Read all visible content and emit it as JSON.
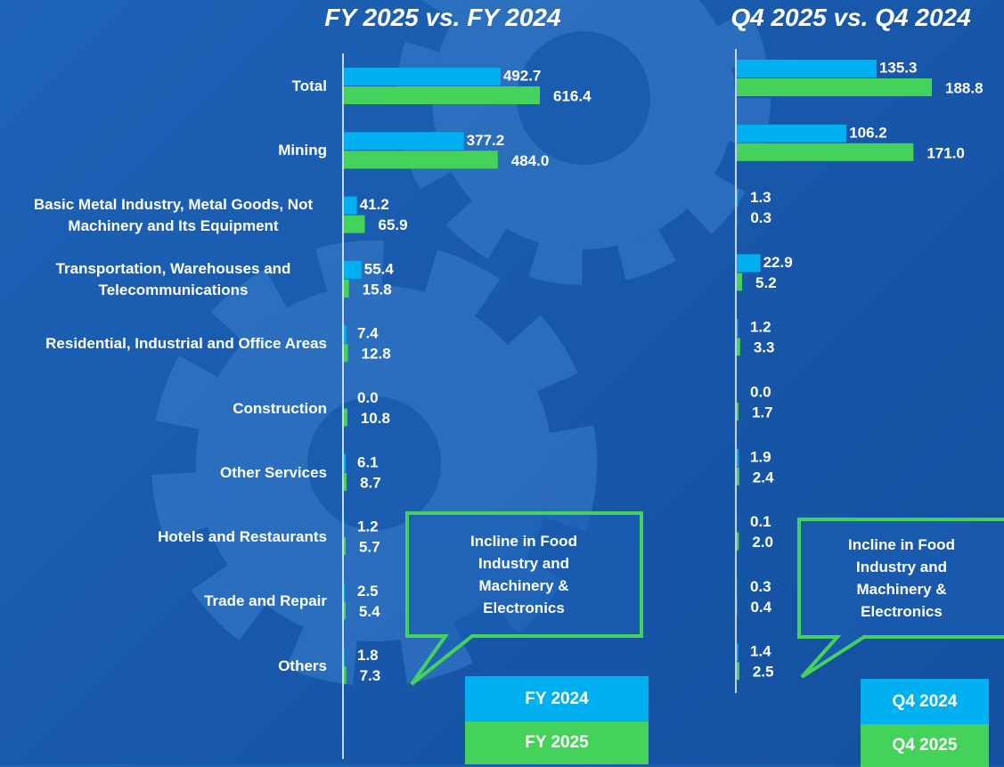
{
  "chart_data": [
    {
      "type": "barh",
      "title": "FY 2025 vs. FY 2024",
      "categories": [
        "Total",
        "Mining",
        "Basic Metal Industry, Metal Goods, Not Machinery and Its Equipment",
        "Transportation, Warehouses and Telecommunications",
        "Residential, Industrial and Office Areas",
        "Construction",
        "Other Services",
        "Hotels and Restaurants",
        "Trade and Repair",
        "Others"
      ],
      "series": [
        {
          "name": "FY 2024",
          "color": "#00b0f0",
          "values": [
            492.7,
            377.2,
            41.2,
            55.4,
            7.4,
            0.0,
            6.1,
            1.2,
            2.5,
            1.8
          ],
          "value_labels": [
            "492.7",
            "377.2",
            "41.2",
            "55.4",
            "7.4",
            "0.0",
            "6.1",
            "1.2",
            "2.5",
            "1.8"
          ]
        },
        {
          "name": "FY 2025",
          "color": "#45d25a",
          "values": [
            616.4,
            484.0,
            65.9,
            15.8,
            12.8,
            10.8,
            8.7,
            5.7,
            5.4,
            7.3
          ],
          "value_labels": [
            "616.4",
            "484.0",
            "65.9",
            "15.8",
            "12.8",
            "10.8",
            "8.7",
            "5.7",
            "5.4",
            "7.3"
          ]
        }
      ],
      "annotation": "Incline in Food Industry and Machinery & Electronics"
    },
    {
      "type": "barh",
      "title": "Q4 2025 vs. Q4 2024",
      "series": [
        {
          "name": "Q4 2024",
          "color": "#00b0f0",
          "values": [
            135.3,
            106.2,
            1.3,
            22.9,
            1.2,
            0.0,
            1.9,
            0.1,
            0.3,
            1.4
          ],
          "value_labels": [
            "135.3",
            "106.2",
            "1.3",
            "22.9",
            "1.2",
            "0.0",
            "1.9",
            "0.1",
            "0.3",
            "1.4"
          ]
        },
        {
          "name": "Q4 2025",
          "color": "#45d25a",
          "values": [
            188.8,
            171.0,
            0.3,
            5.2,
            3.3,
            1.7,
            2.4,
            2.0,
            0.4,
            2.5
          ],
          "value_labels": [
            "188.8",
            "171.0",
            "0.3",
            "5.2",
            "3.3",
            "1.7",
            "2.4",
            "2.0",
            "0.4",
            "2.5"
          ]
        }
      ],
      "annotation": "Incline in Food Industry and Machinery & Electronics"
    }
  ]
}
